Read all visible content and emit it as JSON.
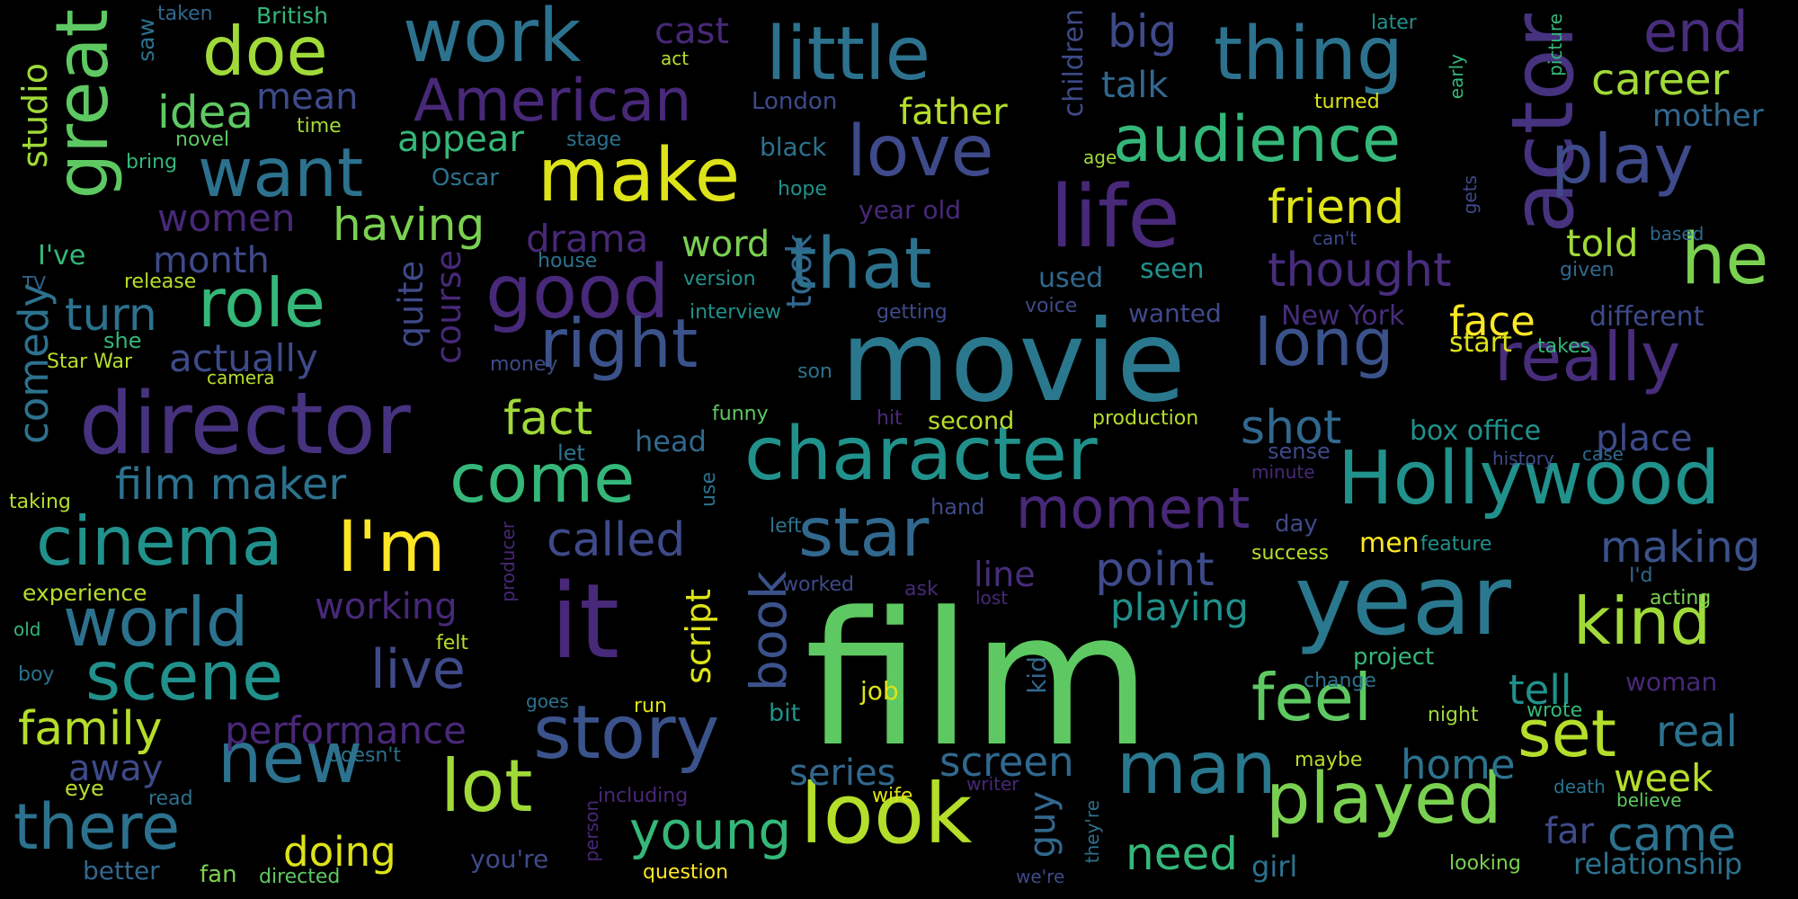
{
  "words": [
    {
      "text": "film",
      "color": "#5ec962"
    },
    {
      "text": "movie",
      "color": "#2a788e"
    },
    {
      "text": "year",
      "color": "#2a788e"
    },
    {
      "text": "it",
      "color": "#482878"
    },
    {
      "text": "director",
      "color": "#46327e"
    },
    {
      "text": "life",
      "color": "#482878"
    },
    {
      "text": "actor",
      "color": "#46327e"
    },
    {
      "text": "Hollywood",
      "color": "#21918c"
    },
    {
      "text": "character",
      "color": "#21918c"
    },
    {
      "text": "story",
      "color": "#3b528b"
    },
    {
      "text": "played",
      "color": "#7ad151"
    },
    {
      "text": "look",
      "color": "#b5de2b"
    },
    {
      "text": "man",
      "color": "#2a788e"
    },
    {
      "text": "make",
      "color": "#dde318"
    },
    {
      "text": "good",
      "color": "#482878"
    },
    {
      "text": "right",
      "color": "#3b528b"
    },
    {
      "text": "new",
      "color": "#2c728e"
    },
    {
      "text": "lot",
      "color": "#a0da39"
    },
    {
      "text": "cinema",
      "color": "#21918c"
    },
    {
      "text": "world",
      "color": "#2c728e"
    },
    {
      "text": "scene",
      "color": "#21918c"
    },
    {
      "text": "star",
      "color": "#31688e"
    },
    {
      "text": "work",
      "color": "#2c728e"
    },
    {
      "text": "little",
      "color": "#2c728e"
    },
    {
      "text": "thing",
      "color": "#2c728e"
    },
    {
      "text": "love",
      "color": "#3e4a89"
    },
    {
      "text": "that",
      "color": "#2c728e"
    },
    {
      "text": "come",
      "color": "#35b779"
    },
    {
      "text": "role",
      "color": "#35b779"
    },
    {
      "text": "want",
      "color": "#2c728e"
    },
    {
      "text": "great",
      "color": "#5ec962"
    },
    {
      "text": "I'm",
      "color": "#fde725"
    },
    {
      "text": "really",
      "color": "#472d7b"
    },
    {
      "text": "long",
      "color": "#3b528b"
    },
    {
      "text": "play",
      "color": "#3e4a89"
    },
    {
      "text": "kind",
      "color": "#a0da39"
    },
    {
      "text": "feel",
      "color": "#5ec962"
    },
    {
      "text": "set",
      "color": "#b5de2b"
    },
    {
      "text": "he",
      "color": "#7ad151"
    },
    {
      "text": "American",
      "color": "#482878"
    },
    {
      "text": "audience",
      "color": "#35b779"
    },
    {
      "text": "doe",
      "color": "#a0da39"
    },
    {
      "text": "moment",
      "color": "#482878"
    },
    {
      "text": "there",
      "color": "#2c728e"
    },
    {
      "text": "young",
      "color": "#35b779"
    },
    {
      "text": "end",
      "color": "#472d7b"
    },
    {
      "text": "book",
      "color": "#3b528b"
    },
    {
      "text": "live",
      "color": "#3e4a89"
    },
    {
      "text": "called",
      "color": "#3e4a89"
    },
    {
      "text": "fact",
      "color": "#a0da39"
    },
    {
      "text": "point",
      "color": "#3e4a89"
    },
    {
      "text": "family",
      "color": "#b5de2b"
    },
    {
      "text": "friend",
      "color": "#dde318"
    },
    {
      "text": "thought",
      "color": "#472d7b"
    },
    {
      "text": "shot",
      "color": "#31688e"
    },
    {
      "text": "film maker",
      "color": "#2c728e"
    },
    {
      "text": "performance",
      "color": "#482878"
    },
    {
      "text": "making",
      "color": "#3b528b"
    },
    {
      "text": "real",
      "color": "#2c728e"
    },
    {
      "text": "came",
      "color": "#2c728e"
    },
    {
      "text": "need",
      "color": "#35b779"
    },
    {
      "text": "screen",
      "color": "#31688e"
    },
    {
      "text": "home",
      "color": "#2c728e"
    },
    {
      "text": "doing",
      "color": "#dde318"
    },
    {
      "text": "career",
      "color": "#a0da39"
    },
    {
      "text": "having",
      "color": "#7ad151"
    },
    {
      "text": "idea",
      "color": "#5ec962"
    },
    {
      "text": "playing",
      "color": "#21918c"
    },
    {
      "text": "working",
      "color": "#482878"
    },
    {
      "text": "script",
      "color": "#dde318"
    },
    {
      "text": "series",
      "color": "#31688e"
    },
    {
      "text": "guy",
      "color": "#31688e"
    },
    {
      "text": "week",
      "color": "#b5de2b"
    },
    {
      "text": "turn",
      "color": "#2c728e"
    },
    {
      "text": "face",
      "color": "#fde725"
    },
    {
      "text": "told",
      "color": "#a0da39"
    },
    {
      "text": "place",
      "color": "#3e4a89"
    },
    {
      "text": "relationship",
      "color": "#2c728e"
    },
    {
      "text": "far",
      "color": "#3e4a89"
    },
    {
      "text": "father",
      "color": "#b5de2b"
    },
    {
      "text": "talk",
      "color": "#31688e"
    },
    {
      "text": "big",
      "color": "#3e4a89"
    },
    {
      "text": "box office",
      "color": "#21918c"
    },
    {
      "text": "mother",
      "color": "#31688e"
    },
    {
      "text": "different",
      "color": "#3e4a89"
    },
    {
      "text": "start",
      "color": "#dde318"
    },
    {
      "text": "tell",
      "color": "#21918c"
    },
    {
      "text": "away",
      "color": "#3e4a89"
    },
    {
      "text": "word",
      "color": "#7ad151"
    },
    {
      "text": "women",
      "color": "#482878"
    },
    {
      "text": "month",
      "color": "#3e4a89"
    },
    {
      "text": "mean",
      "color": "#3e4a89"
    },
    {
      "text": "appear",
      "color": "#35b779"
    },
    {
      "text": "actually",
      "color": "#3e4a89"
    },
    {
      "text": "drama",
      "color": "#482878"
    },
    {
      "text": "cast",
      "color": "#482878"
    },
    {
      "text": "line",
      "color": "#472d7b"
    },
    {
      "text": "head",
      "color": "#31688e"
    },
    {
      "text": "second",
      "color": "#b5de2b"
    },
    {
      "text": "girl",
      "color": "#2c728e"
    },
    {
      "text": "comedy",
      "color": "#2c728e"
    },
    {
      "text": "studio",
      "color": "#a0da39"
    },
    {
      "text": "quite",
      "color": "#3e4a89"
    },
    {
      "text": "course",
      "color": "#482878"
    },
    {
      "text": "took",
      "color": "#31688e"
    },
    {
      "text": "used",
      "color": "#31688e"
    },
    {
      "text": "seen",
      "color": "#21918c"
    },
    {
      "text": "wanted",
      "color": "#3e4a89"
    },
    {
      "text": "New York",
      "color": "#472d7b"
    },
    {
      "text": "year old",
      "color": "#482878"
    },
    {
      "text": "black",
      "color": "#2c728e"
    },
    {
      "text": "London",
      "color": "#3e4a89"
    },
    {
      "text": "Oscar",
      "color": "#2c728e"
    },
    {
      "text": "stage",
      "color": "#2c728e"
    },
    {
      "text": "children",
      "color": "#3e4a89"
    },
    {
      "text": "hope",
      "color": "#21918c"
    },
    {
      "text": "interview",
      "color": "#21918c"
    },
    {
      "text": "version",
      "color": "#21918c"
    },
    {
      "text": "getting",
      "color": "#3e4a89"
    },
    {
      "text": "voice",
      "color": "#3e4a89"
    },
    {
      "text": "house",
      "color": "#2c728e"
    },
    {
      "text": "son",
      "color": "#2c728e"
    },
    {
      "text": "money",
      "color": "#3e4a89"
    },
    {
      "text": "funny",
      "color": "#5ec962"
    },
    {
      "text": "hit",
      "color": "#482878"
    },
    {
      "text": "production",
      "color": "#b5de2b"
    },
    {
      "text": "sense",
      "color": "#3e4a89"
    },
    {
      "text": "minute",
      "color": "#482878"
    },
    {
      "text": "let",
      "color": "#2c728e"
    },
    {
      "text": "use",
      "color": "#2c728e"
    },
    {
      "text": "left",
      "color": "#2c728e"
    },
    {
      "text": "hand",
      "color": "#3e4a89"
    },
    {
      "text": "day",
      "color": "#3e4a89"
    },
    {
      "text": "men",
      "color": "#fde725"
    },
    {
      "text": "feature",
      "color": "#21918c"
    },
    {
      "text": "success",
      "color": "#b5de2b"
    },
    {
      "text": "I'd",
      "color": "#31688e"
    },
    {
      "text": "acting",
      "color": "#7ad151"
    },
    {
      "text": "worked",
      "color": "#3e4a89"
    },
    {
      "text": "ask",
      "color": "#482878"
    },
    {
      "text": "lost",
      "color": "#482878"
    },
    {
      "text": "producer",
      "color": "#482878"
    },
    {
      "text": "felt",
      "color": "#b5de2b"
    },
    {
      "text": "job",
      "color": "#dde318"
    },
    {
      "text": "kid",
      "color": "#31688e"
    },
    {
      "text": "project",
      "color": "#35b779"
    },
    {
      "text": "change",
      "color": "#2c728e"
    },
    {
      "text": "woman",
      "color": "#482878"
    },
    {
      "text": "night",
      "color": "#a0da39"
    },
    {
      "text": "wrote",
      "color": "#35b779"
    },
    {
      "text": "goes",
      "color": "#2c728e"
    },
    {
      "text": "run",
      "color": "#dde318"
    },
    {
      "text": "bit",
      "color": "#21918c"
    },
    {
      "text": "maybe",
      "color": "#b5de2b"
    },
    {
      "text": "wife",
      "color": "#dde318"
    },
    {
      "text": "writer",
      "color": "#482878"
    },
    {
      "text": "including",
      "color": "#482878"
    },
    {
      "text": "person",
      "color": "#482878"
    },
    {
      "text": "they're",
      "color": "#2c728e"
    },
    {
      "text": "death",
      "color": "#2c728e"
    },
    {
      "text": "believe",
      "color": "#5ec962"
    },
    {
      "text": "looking",
      "color": "#7ad151"
    },
    {
      "text": "better",
      "color": "#31688e"
    },
    {
      "text": "fan",
      "color": "#7ad151"
    },
    {
      "text": "directed",
      "color": "#5ec962"
    },
    {
      "text": "you're",
      "color": "#3e4a89"
    },
    {
      "text": "question",
      "color": "#fde725"
    },
    {
      "text": "we're",
      "color": "#3e4a89"
    },
    {
      "text": "doesn't",
      "color": "#2c728e"
    },
    {
      "text": "eye",
      "color": "#b5de2b"
    },
    {
      "text": "read",
      "color": "#2c728e"
    },
    {
      "text": "boy",
      "color": "#2c728e"
    },
    {
      "text": "old",
      "color": "#35b779"
    },
    {
      "text": "experience",
      "color": "#b5de2b"
    },
    {
      "text": "taking",
      "color": "#b5de2b"
    },
    {
      "text": "Star War",
      "color": "#b5de2b"
    },
    {
      "text": "she",
      "color": "#35b779"
    },
    {
      "text": "camera",
      "color": "#b5de2b"
    },
    {
      "text": "TV",
      "color": "#31688e"
    },
    {
      "text": "I've",
      "color": "#35b779"
    },
    {
      "text": "release",
      "color": "#b5de2b"
    },
    {
      "text": "bring",
      "color": "#35b779"
    },
    {
      "text": "novel",
      "color": "#5ec962"
    },
    {
      "text": "time",
      "color": "#a0da39"
    },
    {
      "text": "saw",
      "color": "#2c728e"
    },
    {
      "text": "taken",
      "color": "#31688e"
    },
    {
      "text": "British",
      "color": "#35b779"
    },
    {
      "text": "act",
      "color": "#b5de2b"
    },
    {
      "text": "later",
      "color": "#21918c"
    },
    {
      "text": "turned",
      "color": "#dde318"
    },
    {
      "text": "early",
      "color": "#35b779"
    },
    {
      "text": "picture",
      "color": "#35b779"
    },
    {
      "text": "age",
      "color": "#a0da39"
    },
    {
      "text": "can't",
      "color": "#3e4a89"
    },
    {
      "text": "gets",
      "color": "#3e4a89"
    },
    {
      "text": "based",
      "color": "#31688e"
    },
    {
      "text": "given",
      "color": "#31688e"
    },
    {
      "text": "takes",
      "color": "#35b779"
    },
    {
      "text": "history",
      "color": "#3e4a89"
    },
    {
      "text": "case",
      "color": "#31688e"
    }
  ]
}
